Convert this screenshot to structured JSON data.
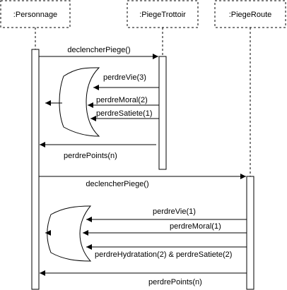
{
  "participants": [
    {
      "id": "personnage",
      "label": ":Personnage"
    },
    {
      "id": "piege_trottoir",
      "label": ":PiegeTrottoir"
    },
    {
      "id": "piege_route",
      "label": ":PiegeRoute"
    }
  ],
  "messages": [
    {
      "label": "declencherPiege()"
    },
    {
      "label": "perdreVie(3)"
    },
    {
      "label": "perdreMoral(2)"
    },
    {
      "label": "perdreSatiete(1)"
    },
    {
      "label": "perdrePoints(n)"
    },
    {
      "label": "declencherPiege()"
    },
    {
      "label": "perdreVie(1)"
    },
    {
      "label": "perdreMoral(1)"
    },
    {
      "label": "perdreHydratation(2) & perdreSatiete(2)"
    },
    {
      "label": "perdrePoints(n)"
    }
  ]
}
